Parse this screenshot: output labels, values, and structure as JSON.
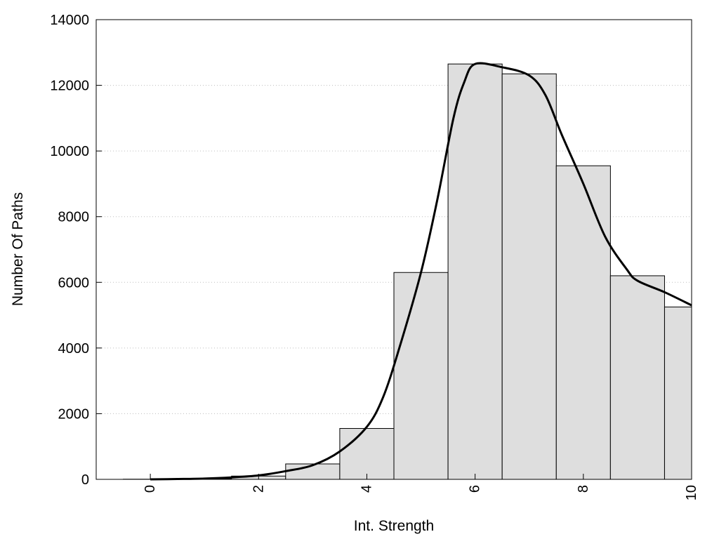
{
  "chart_data": {
    "type": "bar",
    "title": "",
    "xlabel": "Int. Strength",
    "ylabel": "Number Of Paths",
    "xlim": [
      -1,
      10
    ],
    "ylim": [
      0,
      14000
    ],
    "grid": {
      "y": true,
      "x": false,
      "style": "dotted"
    },
    "legend": "none",
    "x_ticks": [
      0,
      2,
      4,
      6,
      8,
      10
    ],
    "x_tick_labels": [
      "0",
      "2",
      "4",
      "6",
      "8",
      "10"
    ],
    "x_tick_rotation": "vertical",
    "y_ticks": [
      0,
      2000,
      4000,
      6000,
      8000,
      10000,
      12000,
      14000
    ],
    "y_tick_labels": [
      "0",
      "2000",
      "4000",
      "6000",
      "8000",
      "10000",
      "12000",
      "14000"
    ],
    "bar_width": 1,
    "bar_centers": [
      0,
      1,
      2,
      3,
      4,
      5,
      6,
      7,
      8,
      9,
      10
    ],
    "values": [
      5,
      20,
      100,
      470,
      1550,
      6300,
      12650,
      12350,
      9550,
      6200,
      5250
    ],
    "bar_color": "#dedede",
    "edge_color": "#000000",
    "curve": {
      "x": [
        0,
        0.5,
        1,
        1.5,
        2,
        2.5,
        3,
        3.5,
        4,
        4.3,
        4.6,
        5,
        5.3,
        5.6,
        5.8,
        6,
        6.5,
        7,
        7.3,
        7.6,
        8,
        8.4,
        8.8,
        9,
        9.5,
        10
      ],
      "y": [
        0,
        10,
        25,
        60,
        120,
        250,
        430,
        850,
        1600,
        2500,
        4000,
        6300,
        8500,
        11000,
        12100,
        12650,
        12550,
        12300,
        11700,
        10500,
        9000,
        7400,
        6400,
        6050,
        5700,
        5300
      ],
      "color": "#000000"
    }
  }
}
